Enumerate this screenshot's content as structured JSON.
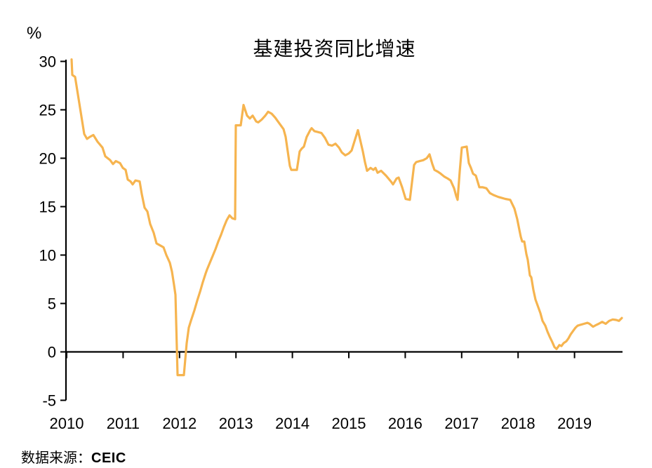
{
  "chart": {
    "title": "基建投资同比增速",
    "y_unit": "%"
  },
  "footer": {
    "source_label": "数据来源：",
    "source_value": "CEIC"
  },
  "chart_data": {
    "type": "line",
    "title": "基建投资同比增速",
    "xlabel": "",
    "ylabel": "%",
    "ylim": [
      -5,
      30
    ],
    "xlim": [
      2010,
      2019.92
    ],
    "y_ticks": [
      30,
      25,
      20,
      15,
      10,
      5,
      0,
      -5
    ],
    "x_ticks": [
      "2010",
      "2011",
      "2012",
      "2013",
      "2014",
      "2015",
      "2016",
      "2017",
      "2018",
      "2019"
    ],
    "grid": false,
    "legend": "none",
    "line_color": "#F6B44F",
    "axis_color": "#000000",
    "source": "CEIC",
    "monthly_approx": {
      "note": "cumulative year-on-year growth %, monthly points Feb-Dec (no Jan)",
      "2010": [
        30.2,
        28.5,
        22.5,
        22.0,
        22.3,
        21.9,
        21.4,
        21.0,
        19.9,
        19.4,
        19.6
      ],
      "2011": [
        18.9,
        17.7,
        17.5,
        17.6,
        14.9,
        13.2,
        11.2,
        10.9,
        10.0,
        9.1,
        5.9
      ],
      "2012": [
        -2.4,
        -2.4,
        2.5,
        4.3,
        6.2,
        8.1,
        9.5,
        10.6,
        12.1,
        13.6,
        13.7
      ],
      "2013": [
        23.4,
        23.4,
        25.5,
        24.2,
        23.8,
        24.0,
        24.8,
        24.5,
        23.9,
        23.3,
        22.0
      ],
      "2014": [
        18.8,
        18.8,
        20.9,
        22.2,
        23.0,
        22.7,
        22.6,
        21.6,
        21.3,
        21.4,
        20.5
      ],
      "2015": [
        20.4,
        21.2,
        22.9,
        20.5,
        18.8,
        19.0,
        18.6,
        18.6,
        18.1,
        17.5,
        17.8
      ],
      "2016": [
        15.8,
        15.7,
        19.4,
        19.7,
        19.8,
        20.2,
        18.8,
        18.5,
        18.1,
        17.7,
        15.8
      ],
      "2017": [
        21.2,
        21.1,
        19.0,
        18.1,
        17.0,
        16.9,
        16.4,
        16.1,
        15.9,
        15.8,
        15.3
      ],
      "2018": [
        12.4,
        11.4,
        8.3,
        7.2,
        4.8,
        3.1,
        1.9,
        0.5,
        0.7,
        1.0,
        1.6
      ],
      "2019": [
        2.5,
        2.8,
        2.9,
        3.0,
        2.8,
        3.0,
        3.0,
        3.2,
        3.3,
        3.5
      ]
    },
    "series": [
      {
        "name": "基建投资同比增速(%)",
        "points": [
          [
            2010.087,
            30.2
          ],
          [
            2010.1,
            28.6
          ],
          [
            2010.149,
            28.4
          ],
          [
            2010.311,
            22.5
          ],
          [
            2010.361,
            22.0
          ],
          [
            2010.41,
            22.2
          ],
          [
            2010.473,
            22.4
          ],
          [
            2010.547,
            21.7
          ],
          [
            2010.634,
            21.1
          ],
          [
            2010.684,
            20.2
          ],
          [
            2010.771,
            19.8
          ],
          [
            2010.821,
            19.4
          ],
          [
            2010.871,
            19.7
          ],
          [
            2010.945,
            19.5
          ],
          [
            2010.995,
            19.0
          ],
          [
            2011.045,
            18.8
          ],
          [
            2011.082,
            17.8
          ],
          [
            2011.132,
            17.6
          ],
          [
            2011.169,
            17.3
          ],
          [
            2011.219,
            17.7
          ],
          [
            2011.294,
            17.6
          ],
          [
            2011.331,
            16.3
          ],
          [
            2011.381,
            14.9
          ],
          [
            2011.43,
            14.5
          ],
          [
            2011.48,
            13.2
          ],
          [
            2011.542,
            12.3
          ],
          [
            2011.592,
            11.2
          ],
          [
            2011.654,
            11.0
          ],
          [
            2011.716,
            10.8
          ],
          [
            2011.766,
            10.0
          ],
          [
            2011.828,
            9.2
          ],
          [
            2011.866,
            8.3
          ],
          [
            2011.903,
            6.9
          ],
          [
            2011.928,
            5.9
          ],
          [
            2011.965,
            -2.4
          ],
          [
            2012.077,
            -2.4
          ],
          [
            2012.127,
            0.9
          ],
          [
            2012.164,
            2.5
          ],
          [
            2012.201,
            3.2
          ],
          [
            2012.264,
            4.3
          ],
          [
            2012.313,
            5.3
          ],
          [
            2012.363,
            6.2
          ],
          [
            2012.413,
            7.2
          ],
          [
            2012.463,
            8.1
          ],
          [
            2012.488,
            8.5
          ],
          [
            2012.537,
            9.2
          ],
          [
            2012.587,
            9.9
          ],
          [
            2012.637,
            10.6
          ],
          [
            2012.687,
            11.4
          ],
          [
            2012.736,
            12.1
          ],
          [
            2012.786,
            12.9
          ],
          [
            2012.836,
            13.6
          ],
          [
            2012.885,
            14.1
          ],
          [
            2012.935,
            13.8
          ],
          [
            2012.985,
            13.7
          ],
          [
            2012.997,
            23.4
          ],
          [
            2013.085,
            23.4
          ],
          [
            2013.134,
            25.5
          ],
          [
            2013.197,
            24.4
          ],
          [
            2013.246,
            24.1
          ],
          [
            2013.296,
            24.4
          ],
          [
            2013.358,
            23.8
          ],
          [
            2013.396,
            23.7
          ],
          [
            2013.458,
            24.0
          ],
          [
            2013.52,
            24.4
          ],
          [
            2013.57,
            24.8
          ],
          [
            2013.632,
            24.6
          ],
          [
            2013.694,
            24.2
          ],
          [
            2013.756,
            23.7
          ],
          [
            2013.794,
            23.4
          ],
          [
            2013.843,
            23.0
          ],
          [
            2013.881,
            22.2
          ],
          [
            2013.955,
            19.2
          ],
          [
            2013.98,
            18.8
          ],
          [
            2014.08,
            18.8
          ],
          [
            2014.129,
            20.7
          ],
          [
            2014.167,
            21.0
          ],
          [
            2014.204,
            21.2
          ],
          [
            2014.254,
            22.2
          ],
          [
            2014.316,
            22.9
          ],
          [
            2014.341,
            23.1
          ],
          [
            2014.391,
            22.8
          ],
          [
            2014.453,
            22.7
          ],
          [
            2014.515,
            22.6
          ],
          [
            2014.577,
            22.1
          ],
          [
            2014.639,
            21.4
          ],
          [
            2014.701,
            21.3
          ],
          [
            2014.764,
            21.5
          ],
          [
            2014.826,
            21.1
          ],
          [
            2014.876,
            20.6
          ],
          [
            2014.938,
            20.3
          ],
          [
            2015.0,
            20.5
          ],
          [
            2015.05,
            20.8
          ],
          [
            2015.162,
            22.9
          ],
          [
            2015.249,
            20.7
          ],
          [
            2015.286,
            19.6
          ],
          [
            2015.323,
            18.7
          ],
          [
            2015.386,
            19.0
          ],
          [
            2015.435,
            18.8
          ],
          [
            2015.473,
            19.0
          ],
          [
            2015.51,
            18.5
          ],
          [
            2015.572,
            18.7
          ],
          [
            2015.659,
            18.2
          ],
          [
            2015.746,
            17.6
          ],
          [
            2015.784,
            17.3
          ],
          [
            2015.846,
            17.9
          ],
          [
            2015.883,
            18.0
          ],
          [
            2015.945,
            17.0
          ],
          [
            2016.007,
            15.8
          ],
          [
            2016.082,
            15.7
          ],
          [
            2016.157,
            19.3
          ],
          [
            2016.194,
            19.6
          ],
          [
            2016.256,
            19.7
          ],
          [
            2016.318,
            19.8
          ],
          [
            2016.381,
            20.0
          ],
          [
            2016.43,
            20.4
          ],
          [
            2016.48,
            19.4
          ],
          [
            2016.517,
            18.8
          ],
          [
            2016.58,
            18.6
          ],
          [
            2016.629,
            18.4
          ],
          [
            2016.692,
            18.1
          ],
          [
            2016.754,
            17.9
          ],
          [
            2016.804,
            17.7
          ],
          [
            2016.866,
            16.9
          ],
          [
            2016.903,
            16.1
          ],
          [
            2016.928,
            15.7
          ],
          [
            2016.965,
            18.6
          ],
          [
            2017.002,
            21.1
          ],
          [
            2017.09,
            21.2
          ],
          [
            2017.127,
            19.5
          ],
          [
            2017.164,
            19.0
          ],
          [
            2017.201,
            18.4
          ],
          [
            2017.251,
            18.2
          ],
          [
            2017.313,
            17.0
          ],
          [
            2017.375,
            17.0
          ],
          [
            2017.438,
            16.9
          ],
          [
            2017.5,
            16.4
          ],
          [
            2017.562,
            16.2
          ],
          [
            2017.649,
            16.0
          ],
          [
            2017.711,
            15.9
          ],
          [
            2017.774,
            15.8
          ],
          [
            2017.861,
            15.7
          ],
          [
            2017.935,
            14.8
          ],
          [
            2017.985,
            13.7
          ],
          [
            2018.022,
            12.6
          ],
          [
            2018.047,
            11.9
          ],
          [
            2018.072,
            11.4
          ],
          [
            2018.109,
            11.4
          ],
          [
            2018.147,
            10.1
          ],
          [
            2018.172,
            9.5
          ],
          [
            2018.209,
            7.9
          ],
          [
            2018.234,
            7.7
          ],
          [
            2018.271,
            6.4
          ],
          [
            2018.308,
            5.4
          ],
          [
            2018.358,
            4.6
          ],
          [
            2018.396,
            4.0
          ],
          [
            2018.433,
            3.2
          ],
          [
            2018.483,
            2.7
          ],
          [
            2018.52,
            2.1
          ],
          [
            2018.557,
            1.6
          ],
          [
            2018.607,
            1.0
          ],
          [
            2018.644,
            0.5
          ],
          [
            2018.682,
            0.3
          ],
          [
            2018.731,
            0.7
          ],
          [
            2018.769,
            0.6
          ],
          [
            2018.806,
            0.9
          ],
          [
            2018.856,
            1.1
          ],
          [
            2018.893,
            1.4
          ],
          [
            2018.93,
            1.8
          ],
          [
            2018.98,
            2.2
          ],
          [
            2019.017,
            2.5
          ],
          [
            2019.055,
            2.7
          ],
          [
            2019.104,
            2.8
          ],
          [
            2019.167,
            2.9
          ],
          [
            2019.229,
            3.0
          ],
          [
            2019.266,
            2.9
          ],
          [
            2019.328,
            2.6
          ],
          [
            2019.39,
            2.8
          ],
          [
            2019.428,
            2.9
          ],
          [
            2019.49,
            3.1
          ],
          [
            2019.552,
            2.9
          ],
          [
            2019.614,
            3.2
          ],
          [
            2019.677,
            3.35
          ],
          [
            2019.739,
            3.3
          ],
          [
            2019.789,
            3.2
          ],
          [
            2019.838,
            3.5
          ]
        ]
      }
    ]
  }
}
